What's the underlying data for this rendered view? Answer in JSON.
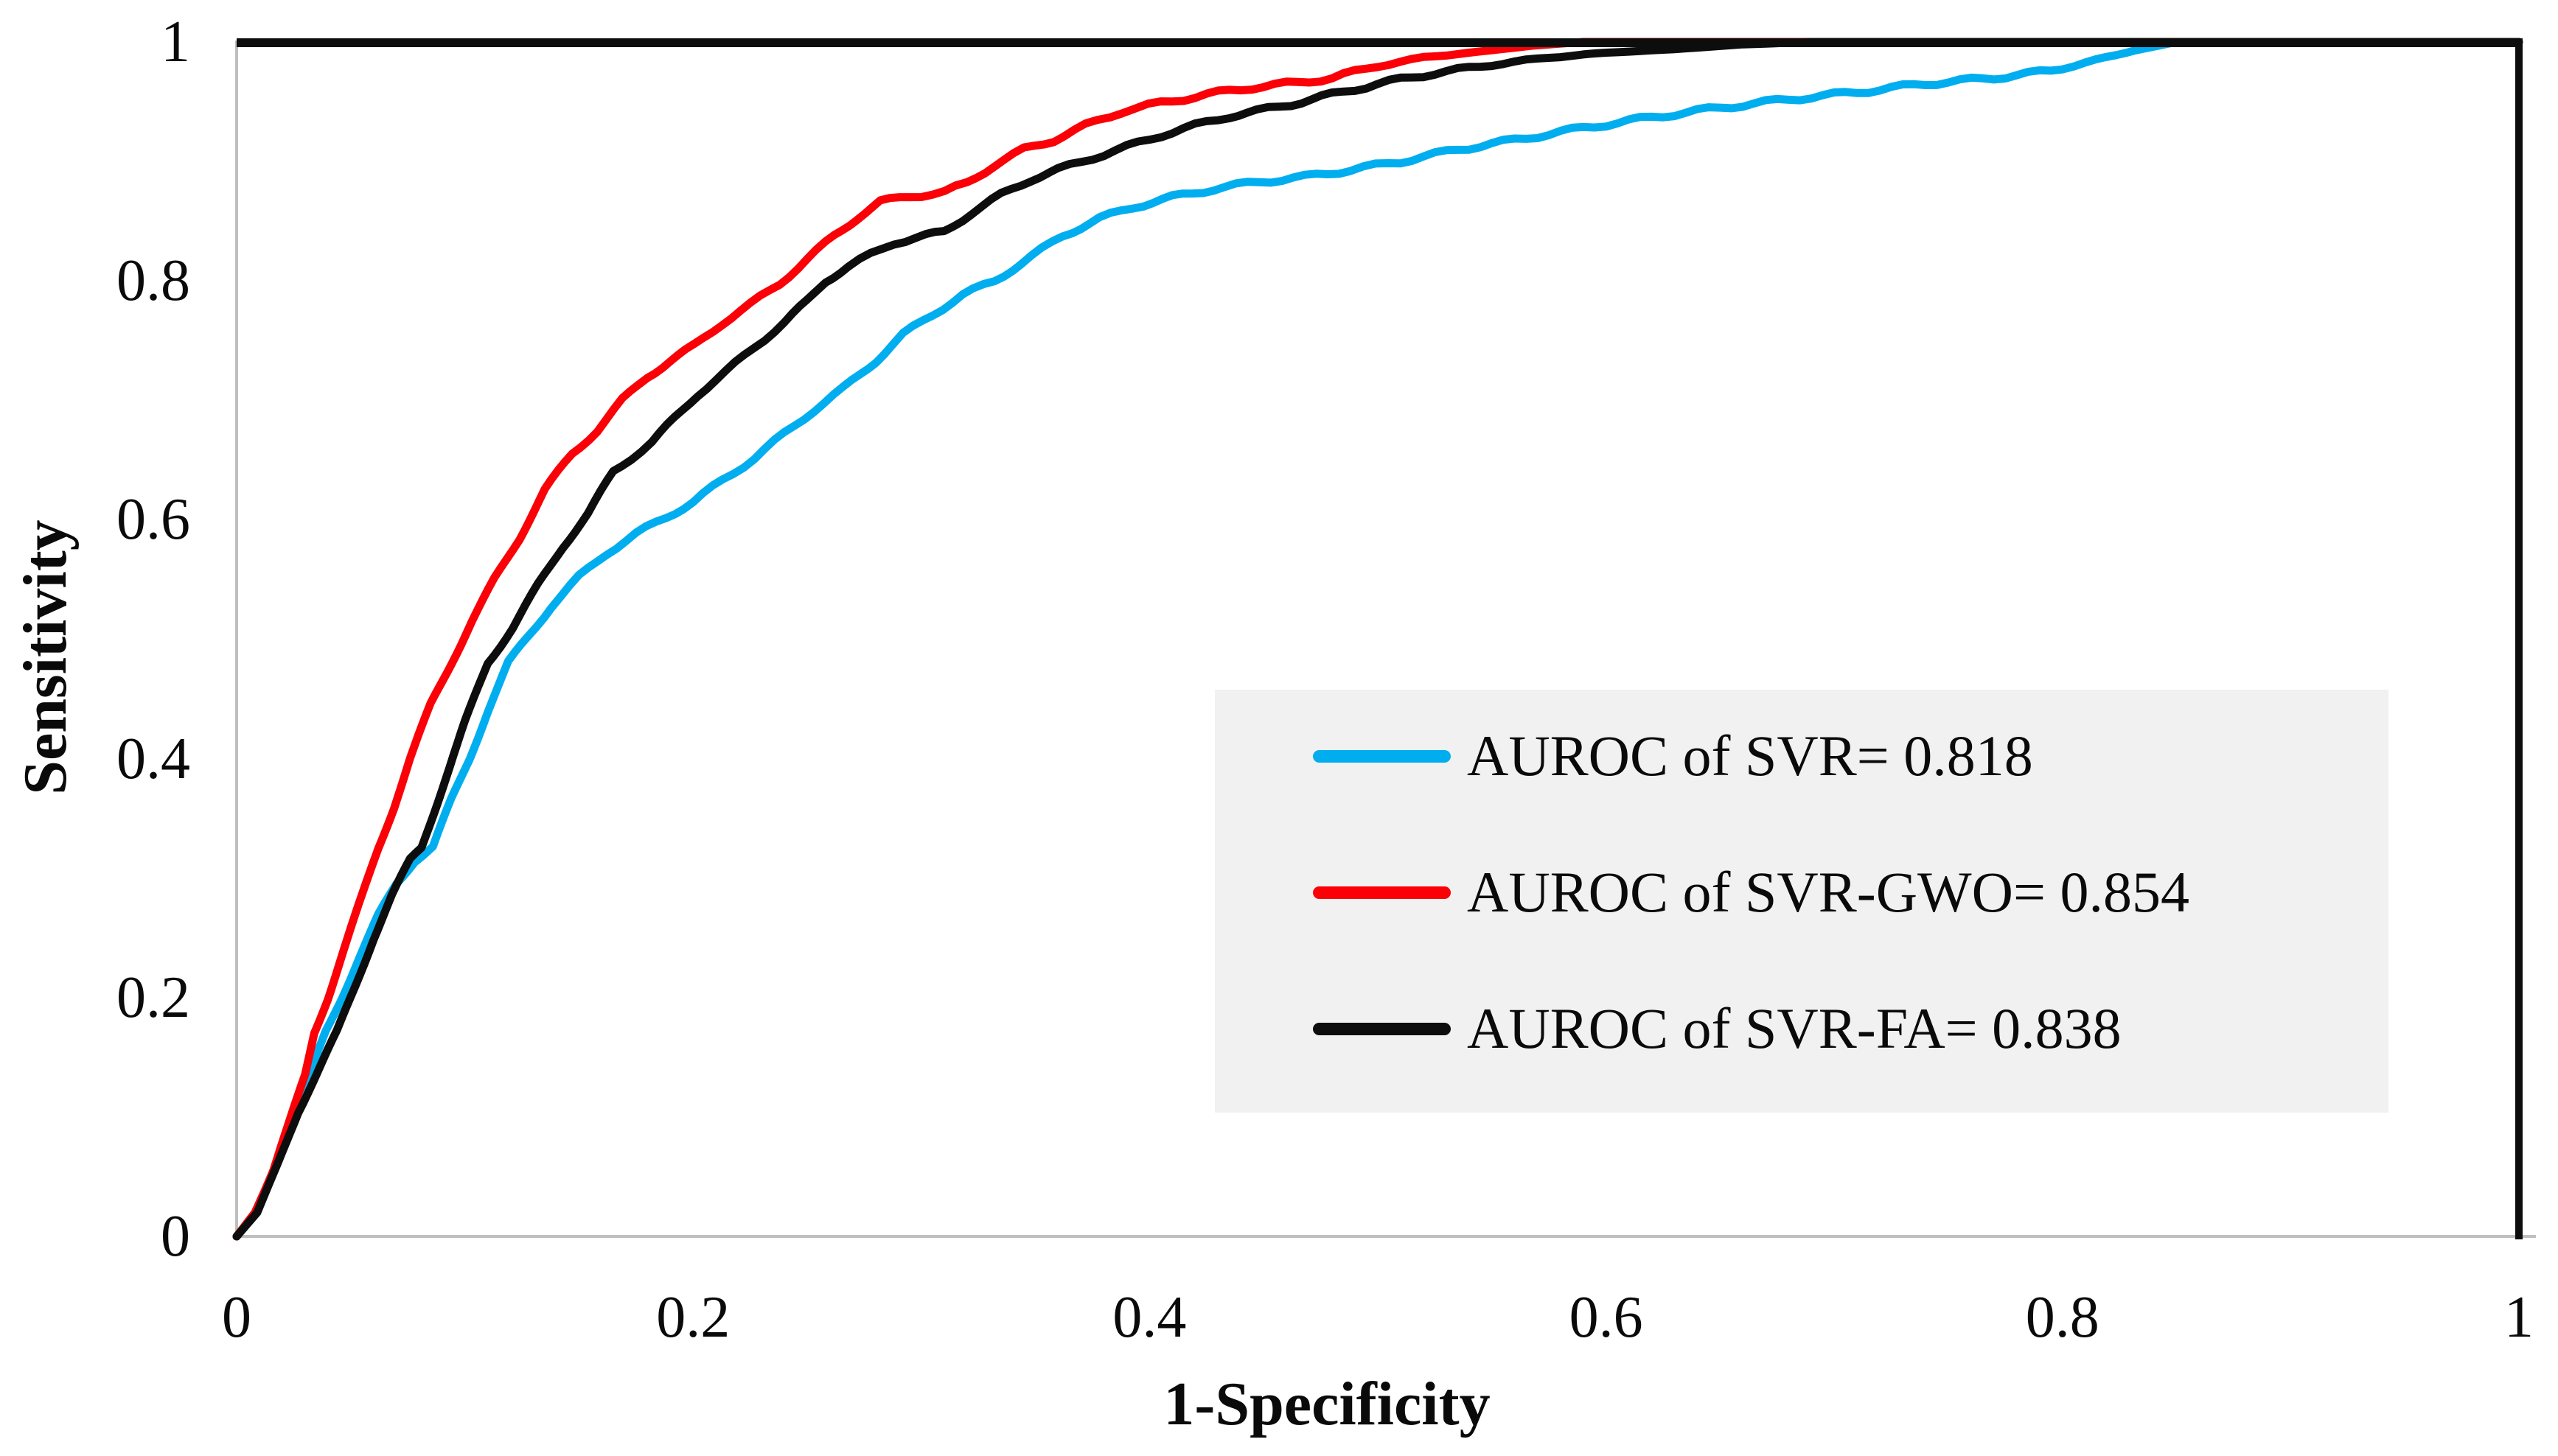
{
  "figure": {
    "background": "#ffffff",
    "plot_background": "#ffffff"
  },
  "axes": {
    "x": {
      "title": "1-Specificity",
      "tick_labels": [
        "0",
        "0.2",
        "0.4",
        "0.6",
        "0.8",
        "1"
      ],
      "tick_values": [
        0,
        0.2,
        0.4,
        0.6,
        0.8,
        1
      ],
      "range": [
        0,
        1
      ]
    },
    "y": {
      "title": "Sensitivity",
      "tick_labels": [
        "0",
        "0.2",
        "0.4",
        "0.6",
        "0.8",
        "1"
      ],
      "tick_values": [
        0,
        0.2,
        0.4,
        0.6,
        0.8,
        1
      ],
      "range": [
        0,
        1
      ]
    },
    "axis_line_color": "#bfbfbf",
    "border_color": "#0d0d0d"
  },
  "legend": {
    "background": "#f1f1f2",
    "position": "center-right",
    "entries": [
      {
        "label": "AUROC of SVR= 0.818"
      },
      {
        "label": "AUROC of SVR-GWO= 0.854"
      },
      {
        "label": "AUROC of SVR-FA= 0.838"
      }
    ]
  },
  "chart_data": {
    "type": "line",
    "title": "",
    "xlabel": "1-Specificity",
    "ylabel": "Sensitivity",
    "xlim": [
      0,
      1
    ],
    "ylim": [
      0,
      1
    ],
    "grid": false,
    "legend_position": "center-right",
    "series": [
      {
        "name": "SVR",
        "auroc": 0.818,
        "color": "#00aeef",
        "points": [
          [
            0,
            0
          ],
          [
            0.008,
            0.018
          ],
          [
            0.016,
            0.055
          ],
          [
            0.025,
            0.1
          ],
          [
            0.033,
            0.14
          ],
          [
            0.039,
            0.171
          ],
          [
            0.046,
            0.2
          ],
          [
            0.054,
            0.235
          ],
          [
            0.062,
            0.268
          ],
          [
            0.07,
            0.295
          ],
          [
            0.078,
            0.315
          ],
          [
            0.086,
            0.326
          ],
          [
            0.094,
            0.365
          ],
          [
            0.102,
            0.4
          ],
          [
            0.11,
            0.44
          ],
          [
            0.119,
            0.48
          ],
          [
            0.128,
            0.503
          ],
          [
            0.138,
            0.528
          ],
          [
            0.15,
            0.552
          ],
          [
            0.162,
            0.572
          ],
          [
            0.175,
            0.588
          ],
          [
            0.188,
            0.602
          ],
          [
            0.2,
            0.615
          ],
          [
            0.213,
            0.633
          ],
          [
            0.227,
            0.652
          ],
          [
            0.24,
            0.672
          ],
          [
            0.253,
            0.692
          ],
          [
            0.266,
            0.71
          ],
          [
            0.28,
            0.733
          ],
          [
            0.292,
            0.755
          ],
          [
            0.305,
            0.772
          ],
          [
            0.318,
            0.788
          ],
          [
            0.332,
            0.8
          ],
          [
            0.348,
            0.82
          ],
          [
            0.362,
            0.838
          ],
          [
            0.378,
            0.852
          ],
          [
            0.393,
            0.862
          ],
          [
            0.41,
            0.87
          ],
          [
            0.428,
            0.877
          ],
          [
            0.448,
            0.883
          ],
          [
            0.468,
            0.887
          ],
          [
            0.488,
            0.893
          ],
          [
            0.51,
            0.9
          ],
          [
            0.535,
            0.91
          ],
          [
            0.56,
            0.918
          ],
          [
            0.59,
            0.928
          ],
          [
            0.62,
            0.937
          ],
          [
            0.65,
            0.945
          ],
          [
            0.68,
            0.952
          ],
          [
            0.71,
            0.958
          ],
          [
            0.74,
            0.965
          ],
          [
            0.77,
            0.97
          ],
          [
            0.795,
            0.976
          ],
          [
            0.815,
            0.985
          ],
          [
            0.832,
            0.993
          ],
          [
            0.85,
            1
          ],
          [
            1,
            1
          ]
        ]
      },
      {
        "name": "SVR-GWO",
        "auroc": 0.854,
        "color": "#fb0007",
        "points": [
          [
            0,
            0
          ],
          [
            0.008,
            0.02
          ],
          [
            0.016,
            0.055
          ],
          [
            0.024,
            0.1
          ],
          [
            0.03,
            0.135
          ],
          [
            0.034,
            0.171
          ],
          [
            0.04,
            0.2
          ],
          [
            0.047,
            0.24
          ],
          [
            0.055,
            0.285
          ],
          [
            0.062,
            0.325
          ],
          [
            0.069,
            0.36
          ],
          [
            0.076,
            0.4
          ],
          [
            0.085,
            0.445
          ],
          [
            0.094,
            0.48
          ],
          [
            0.103,
            0.515
          ],
          [
            0.113,
            0.55
          ],
          [
            0.124,
            0.585
          ],
          [
            0.135,
            0.625
          ],
          [
            0.147,
            0.655
          ],
          [
            0.158,
            0.675
          ],
          [
            0.169,
            0.7
          ],
          [
            0.18,
            0.72
          ],
          [
            0.19,
            0.733
          ],
          [
            0.2,
            0.745
          ],
          [
            0.213,
            0.765
          ],
          [
            0.225,
            0.78
          ],
          [
            0.238,
            0.798
          ],
          [
            0.25,
            0.818
          ],
          [
            0.262,
            0.838
          ],
          [
            0.272,
            0.853
          ],
          [
            0.282,
            0.866
          ],
          [
            0.295,
            0.871
          ],
          [
            0.31,
            0.874
          ],
          [
            0.32,
            0.882
          ],
          [
            0.332,
            0.897
          ],
          [
            0.345,
            0.91
          ],
          [
            0.358,
            0.918
          ],
          [
            0.372,
            0.93
          ],
          [
            0.388,
            0.942
          ],
          [
            0.405,
            0.949
          ],
          [
            0.425,
            0.956
          ],
          [
            0.445,
            0.962
          ],
          [
            0.465,
            0.966
          ],
          [
            0.48,
            0.97
          ],
          [
            0.5,
            0.98
          ],
          [
            0.52,
            0.987
          ],
          [
            0.545,
            0.992
          ],
          [
            0.568,
            0.997
          ],
          [
            0.59,
            1
          ],
          [
            1,
            1
          ]
        ]
      },
      {
        "name": "SVR-FA",
        "auroc": 0.838,
        "color": "#0d0d0d",
        "points": [
          [
            0,
            0
          ],
          [
            0.009,
            0.02
          ],
          [
            0.018,
            0.06
          ],
          [
            0.027,
            0.105
          ],
          [
            0.036,
            0.14
          ],
          [
            0.044,
            0.171
          ],
          [
            0.052,
            0.21
          ],
          [
            0.06,
            0.25
          ],
          [
            0.068,
            0.285
          ],
          [
            0.076,
            0.315
          ],
          [
            0.081,
            0.326
          ],
          [
            0.09,
            0.375
          ],
          [
            0.1,
            0.43
          ],
          [
            0.11,
            0.48
          ],
          [
            0.121,
            0.51
          ],
          [
            0.132,
            0.545
          ],
          [
            0.143,
            0.578
          ],
          [
            0.154,
            0.605
          ],
          [
            0.165,
            0.64
          ],
          [
            0.173,
            0.652
          ],
          [
            0.182,
            0.665
          ],
          [
            0.192,
            0.685
          ],
          [
            0.202,
            0.705
          ],
          [
            0.214,
            0.723
          ],
          [
            0.227,
            0.745
          ],
          [
            0.24,
            0.765
          ],
          [
            0.25,
            0.783
          ],
          [
            0.258,
            0.8
          ],
          [
            0.268,
            0.812
          ],
          [
            0.278,
            0.822
          ],
          [
            0.288,
            0.832
          ],
          [
            0.298,
            0.836
          ],
          [
            0.31,
            0.841
          ],
          [
            0.322,
            0.857
          ],
          [
            0.335,
            0.872
          ],
          [
            0.348,
            0.885
          ],
          [
            0.36,
            0.893
          ],
          [
            0.375,
            0.903
          ],
          [
            0.39,
            0.912
          ],
          [
            0.405,
            0.922
          ],
          [
            0.42,
            0.93
          ],
          [
            0.435,
            0.938
          ],
          [
            0.447,
            0.942
          ],
          [
            0.462,
            0.948
          ],
          [
            0.48,
            0.956
          ],
          [
            0.5,
            0.965
          ],
          [
            0.525,
            0.974
          ],
          [
            0.55,
            0.981
          ],
          [
            0.575,
            0.987
          ],
          [
            0.6,
            0.991
          ],
          [
            0.63,
            0.994
          ],
          [
            0.66,
            0.998
          ],
          [
            0.69,
            1
          ],
          [
            1,
            1
          ]
        ]
      }
    ]
  }
}
